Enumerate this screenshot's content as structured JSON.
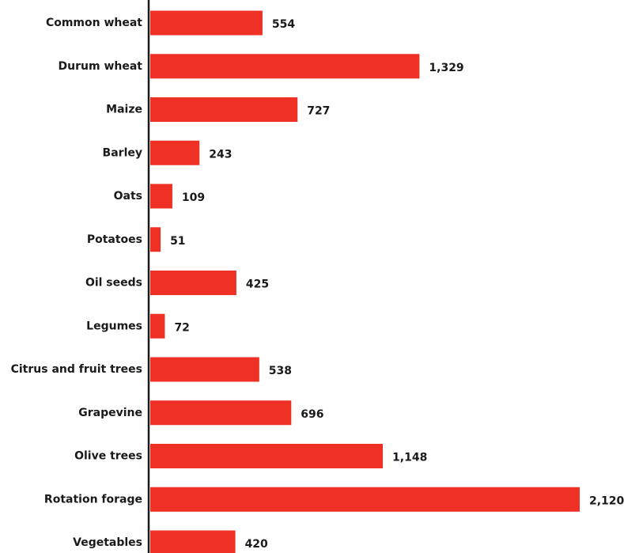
{
  "chart_data": {
    "type": "bar",
    "orientation": "horizontal",
    "categories": [
      "Common wheat",
      "Durum wheat",
      "Maize",
      "Barley",
      "Oats",
      "Potatoes",
      "Oil seeds",
      "Legumes",
      "Citrus and fruit trees",
      "Grapevine",
      "Olive trees",
      "Rotation forage",
      "Vegetables"
    ],
    "values": [
      554,
      1329,
      727,
      243,
      109,
      51,
      425,
      72,
      538,
      696,
      1148,
      2120,
      420
    ],
    "value_labels": [
      "554",
      "1,329",
      "727",
      "243",
      "109",
      "51",
      "425",
      "72",
      "538",
      "696",
      "1,148",
      "2,120",
      "420"
    ],
    "title": "",
    "xlabel": "",
    "ylabel": "",
    "grid": false,
    "legend": "none",
    "colors": {
      "bar": "#ee3124",
      "axis": "#1a1a1a",
      "text": "#1a1a1a"
    }
  }
}
